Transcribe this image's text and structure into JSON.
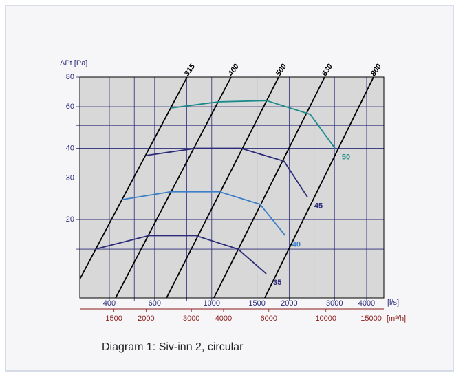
{
  "chart_data": {
    "type": "line",
    "caption": "Diagram 1: Siv-inn 2, circular",
    "y_label": "ΔPt [Pa]",
    "x_label": "[l/s]",
    "x2_label": "[m³/h]",
    "log_x": true,
    "log_y": true,
    "grid": true,
    "xlim": [
      307,
      4667
    ],
    "xticks": [
      400,
      600,
      1000,
      1500,
      2000,
      3000,
      4000
    ],
    "minor_xticks": [
      500,
      800,
      2500
    ],
    "x2lim": [
      1105,
      16800
    ],
    "x2ticks": [
      1500,
      2000,
      3000,
      4000,
      6000,
      10000,
      15000
    ],
    "ylim": [
      9.33,
      80
    ],
    "yticks": [
      80,
      60,
      40,
      30,
      20
    ],
    "minor_yticks": [
      50,
      15
    ],
    "diameter_series": [
      {
        "name": "315",
        "color": "#000000",
        "x": [
          307,
          802
        ],
        "values": [
          11.2,
          80
        ]
      },
      {
        "name": "400",
        "color": "#000000",
        "x": [
          423,
          1189
        ],
        "values": [
          9.33,
          80
        ]
      },
      {
        "name": "500",
        "color": "#000000",
        "x": [
          667,
          1820
        ],
        "values": [
          9.33,
          80
        ]
      },
      {
        "name": "630",
        "color": "#000000",
        "x": [
          1019,
          2748
        ],
        "values": [
          9.33,
          80
        ]
      },
      {
        "name": "800",
        "color": "#000000",
        "x": [
          1607,
          4256
        ],
        "values": [
          9.33,
          80
        ]
      }
    ],
    "series": [
      {
        "name": "35",
        "color": "#2b2b7a",
        "x": [
          352,
          568,
          869,
          1265,
          1630
        ],
        "values": [
          15.0,
          17.1,
          17.1,
          15.0,
          11.8
        ]
      },
      {
        "name": "40",
        "color": "#3a7fc8",
        "x": [
          450,
          692,
          1072,
          1541,
          1932
        ],
        "values": [
          24.3,
          26.2,
          26.2,
          23.2,
          17.1
        ]
      },
      {
        "name": "45",
        "color": "#2b2b7a",
        "x": [
          554,
          869,
          1297,
          1910,
          2355
        ],
        "values": [
          37.3,
          40,
          40,
          35.3,
          24.9
        ]
      },
      {
        "name": "50",
        "color": "#1a8a8a",
        "x": [
          692,
          1064,
          1636,
          2414,
          3013
        ],
        "values": [
          59.2,
          62.9,
          63.6,
          55.7,
          40
        ]
      }
    ]
  }
}
